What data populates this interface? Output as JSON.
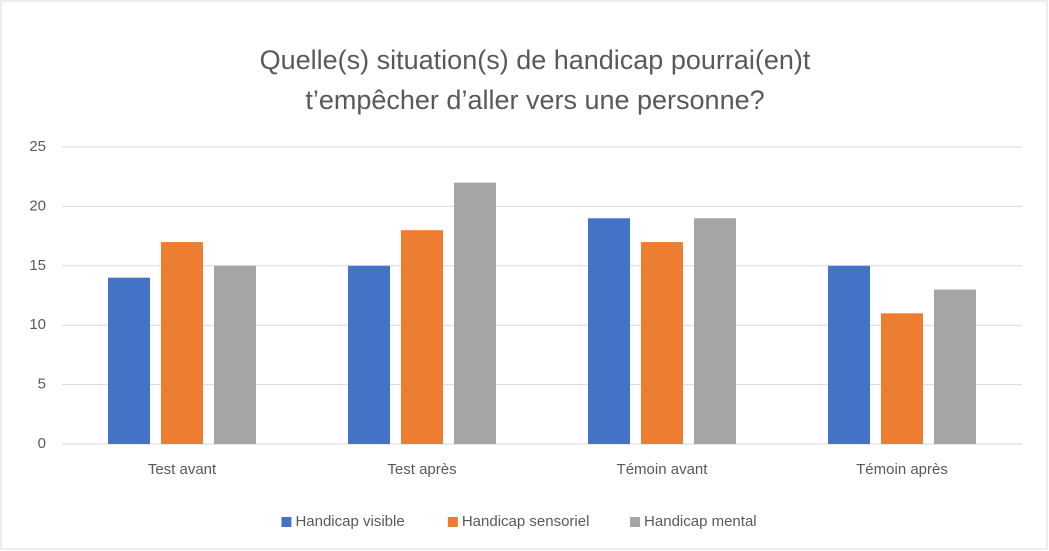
{
  "chart_data": {
    "type": "bar",
    "title": [
      "Quelle(s) situation(s) de handicap pourrai(en)t",
      "t’empêcher d’aller vers une personne?"
    ],
    "categories": [
      "Test avant",
      "Test après",
      "Témoin avant",
      "Témoin après"
    ],
    "series": [
      {
        "name": "Handicap visible",
        "color": "#4472c4",
        "values": [
          14,
          15,
          19,
          15
        ]
      },
      {
        "name": "Handicap sensoriel",
        "color": "#ed7d31",
        "values": [
          17,
          18,
          17,
          11
        ]
      },
      {
        "name": "Handicap mental",
        "color": "#a5a5a5",
        "values": [
          15,
          22,
          19,
          13
        ]
      }
    ],
    "ylim": [
      0,
      25
    ],
    "yticks": [
      0,
      5,
      10,
      15,
      20,
      25
    ],
    "grid": true,
    "legend": "bottom"
  }
}
